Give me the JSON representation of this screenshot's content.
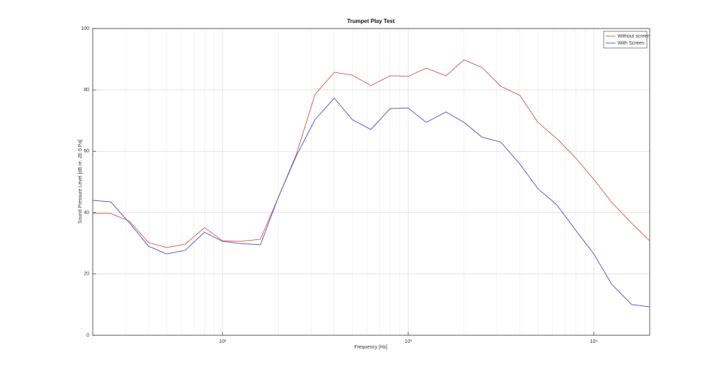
{
  "chart_data": {
    "type": "line",
    "title": "Trumpet Play Test",
    "xlabel": "Frequency [Hz]",
    "ylabel": "Sound Pressure Level [dB re. 2E-5 Pa]",
    "x": [
      20,
      25,
      31.5,
      40,
      50,
      63,
      80,
      100,
      125,
      160,
      200,
      250,
      315,
      400,
      500,
      630,
      800,
      1000,
      1250,
      1600,
      2000,
      2500,
      3150,
      4000,
      5000,
      6300,
      8000,
      10000,
      12500,
      16000,
      20000
    ],
    "series": [
      {
        "name": "Without screen",
        "color": "#d9605a",
        "values": [
          39.7,
          39.7,
          37.2,
          30.2,
          28.6,
          29.7,
          35.1,
          30.8,
          30.6,
          31.3,
          45,
          59,
          78.5,
          85.7,
          84.8,
          81.4,
          84.6,
          84.4,
          87.1,
          84.6,
          89.8,
          87.3,
          81.2,
          78.2,
          69.4,
          64.2,
          57.8,
          50.8,
          43.3,
          36.5,
          30.8
        ]
      },
      {
        "name": "With Screen",
        "color": "#5a5ac8",
        "values": [
          44.0,
          43.5,
          36.7,
          29.0,
          26.5,
          27.7,
          33.6,
          30.6,
          29.9,
          29.5,
          45,
          58.5,
          70.3,
          77.3,
          70.3,
          67.1,
          73.9,
          74.1,
          69.4,
          72.8,
          69.4,
          64.6,
          63.0,
          55.8,
          47.8,
          42.6,
          34.2,
          26.5,
          16.6,
          10.0,
          9.3
        ]
      }
    ],
    "xscale": "log",
    "xlim": [
      20,
      20000
    ],
    "ylim": [
      0,
      100
    ],
    "xticks": [
      {
        "value": 100,
        "label": "10²"
      },
      {
        "value": 1000,
        "label": "10³"
      },
      {
        "value": 10000,
        "label": "10⁴"
      }
    ],
    "xminorticks": [
      20,
      30,
      40,
      50,
      60,
      70,
      80,
      90,
      200,
      300,
      400,
      500,
      600,
      700,
      800,
      900,
      2000,
      3000,
      4000,
      5000,
      6000,
      7000,
      8000,
      9000
    ],
    "yticks": [
      0,
      20,
      40,
      60,
      80,
      100
    ],
    "grid": true,
    "legend": "northeast"
  }
}
